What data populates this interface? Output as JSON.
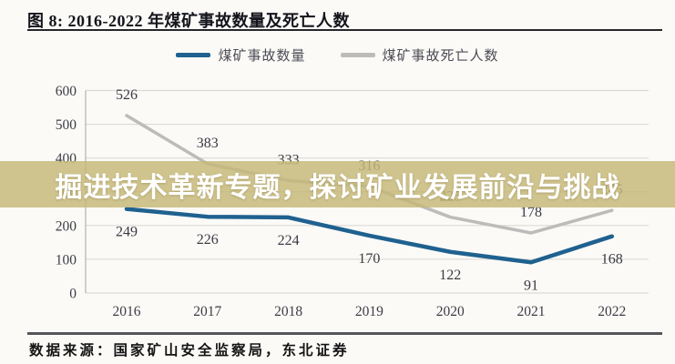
{
  "figure": {
    "title": "图 8: 2016-2022 年煤矿事故数量及死亡人数",
    "source": "数据来源：国家矿山安全监察局，东北证券"
  },
  "overlay": {
    "text": "掘进技术革新专题，探讨矿业发展前沿与挑战",
    "background_color": "#c6b87a",
    "text_color": "#ffffff"
  },
  "legend": {
    "items": [
      {
        "label": "煤矿事故数量",
        "color": "#1f618f"
      },
      {
        "label": "煤矿事故死亡人数",
        "color": "#bcbcba"
      }
    ]
  },
  "chart_data": {
    "type": "line",
    "categories": [
      "2016",
      "2017",
      "2018",
      "2019",
      "2020",
      "2021",
      "2022"
    ],
    "series": [
      {
        "name": "煤矿事故数量",
        "color": "#1f618f",
        "values": [
          249,
          226,
          224,
          170,
          122,
          91,
          168
        ]
      },
      {
        "name": "煤矿事故死亡人数",
        "color": "#bcbcba",
        "values": [
          526,
          383,
          333,
          316,
          225,
          178,
          245
        ]
      }
    ],
    "ylabel": "",
    "xlabel": "",
    "ylim": [
      0,
      600
    ],
    "yticks": [
      0,
      100,
      200,
      300,
      400,
      500,
      600
    ],
    "grid": true,
    "legend_position": "top"
  }
}
